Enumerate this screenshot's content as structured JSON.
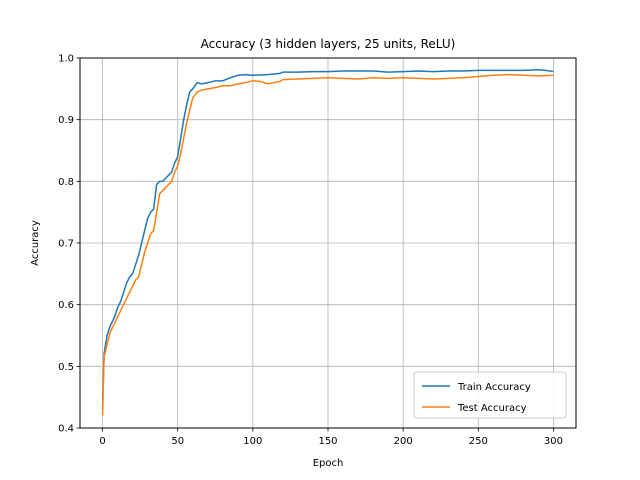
{
  "chart_data": {
    "type": "line",
    "title": "Accuracy (3 hidden layers, 25 units, ReLU)",
    "xlabel": "Epoch",
    "ylabel": "Accuracy",
    "xlim": [
      -15,
      315
    ],
    "ylim": [
      0.4,
      1.0
    ],
    "xticks": [
      0,
      50,
      100,
      150,
      200,
      250,
      300
    ],
    "yticks": [
      0.4,
      0.5,
      0.6,
      0.7,
      0.8,
      0.9,
      1.0
    ],
    "grid": true,
    "legend_position": "bottom-right",
    "series": [
      {
        "name": "Train Accuracy",
        "color": "#1f77b4",
        "points": [
          [
            0,
            0.43
          ],
          [
            1,
            0.52
          ],
          [
            3,
            0.55
          ],
          [
            5,
            0.565
          ],
          [
            8,
            0.58
          ],
          [
            10,
            0.595
          ],
          [
            12,
            0.605
          ],
          [
            14,
            0.62
          ],
          [
            16,
            0.635
          ],
          [
            18,
            0.645
          ],
          [
            20,
            0.65
          ],
          [
            22,
            0.665
          ],
          [
            24,
            0.68
          ],
          [
            26,
            0.7
          ],
          [
            28,
            0.72
          ],
          [
            30,
            0.74
          ],
          [
            32,
            0.75
          ],
          [
            34,
            0.755
          ],
          [
            36,
            0.795
          ],
          [
            38,
            0.8
          ],
          [
            40,
            0.8
          ],
          [
            42,
            0.805
          ],
          [
            44,
            0.81
          ],
          [
            46,
            0.815
          ],
          [
            48,
            0.83
          ],
          [
            50,
            0.84
          ],
          [
            52,
            0.87
          ],
          [
            54,
            0.9
          ],
          [
            56,
            0.925
          ],
          [
            58,
            0.945
          ],
          [
            60,
            0.95
          ],
          [
            63,
            0.96
          ],
          [
            66,
            0.958
          ],
          [
            70,
            0.96
          ],
          [
            75,
            0.963
          ],
          [
            80,
            0.963
          ],
          [
            85,
            0.968
          ],
          [
            90,
            0.972
          ],
          [
            95,
            0.973
          ],
          [
            100,
            0.972
          ],
          [
            110,
            0.973
          ],
          [
            118,
            0.975
          ],
          [
            120,
            0.977
          ],
          [
            130,
            0.977
          ],
          [
            140,
            0.978
          ],
          [
            150,
            0.978
          ],
          [
            160,
            0.979
          ],
          [
            170,
            0.979
          ],
          [
            180,
            0.979
          ],
          [
            190,
            0.977
          ],
          [
            200,
            0.978
          ],
          [
            210,
            0.979
          ],
          [
            220,
            0.978
          ],
          [
            230,
            0.979
          ],
          [
            240,
            0.979
          ],
          [
            250,
            0.98
          ],
          [
            260,
            0.98
          ],
          [
            270,
            0.98
          ],
          [
            280,
            0.98
          ],
          [
            290,
            0.981
          ],
          [
            295,
            0.98
          ],
          [
            300,
            0.978
          ]
        ]
      },
      {
        "name": "Test Accuracy",
        "color": "#ff7f0e",
        "points": [
          [
            0,
            0.42
          ],
          [
            1,
            0.515
          ],
          [
            3,
            0.535
          ],
          [
            5,
            0.555
          ],
          [
            8,
            0.57
          ],
          [
            10,
            0.58
          ],
          [
            14,
            0.6
          ],
          [
            18,
            0.62
          ],
          [
            20,
            0.63
          ],
          [
            22,
            0.64
          ],
          [
            24,
            0.645
          ],
          [
            26,
            0.665
          ],
          [
            28,
            0.685
          ],
          [
            30,
            0.7
          ],
          [
            32,
            0.715
          ],
          [
            34,
            0.72
          ],
          [
            36,
            0.75
          ],
          [
            38,
            0.78
          ],
          [
            40,
            0.785
          ],
          [
            42,
            0.79
          ],
          [
            44,
            0.795
          ],
          [
            46,
            0.8
          ],
          [
            48,
            0.815
          ],
          [
            50,
            0.825
          ],
          [
            52,
            0.845
          ],
          [
            54,
            0.87
          ],
          [
            56,
            0.895
          ],
          [
            58,
            0.915
          ],
          [
            60,
            0.935
          ],
          [
            63,
            0.945
          ],
          [
            66,
            0.948
          ],
          [
            70,
            0.95
          ],
          [
            75,
            0.952
          ],
          [
            80,
            0.955
          ],
          [
            85,
            0.955
          ],
          [
            90,
            0.958
          ],
          [
            95,
            0.96
          ],
          [
            100,
            0.963
          ],
          [
            105,
            0.962
          ],
          [
            110,
            0.958
          ],
          [
            118,
            0.962
          ],
          [
            120,
            0.965
          ],
          [
            130,
            0.966
          ],
          [
            140,
            0.967
          ],
          [
            150,
            0.968
          ],
          [
            160,
            0.967
          ],
          [
            170,
            0.966
          ],
          [
            180,
            0.968
          ],
          [
            190,
            0.967
          ],
          [
            200,
            0.968
          ],
          [
            210,
            0.967
          ],
          [
            220,
            0.966
          ],
          [
            230,
            0.967
          ],
          [
            240,
            0.968
          ],
          [
            250,
            0.97
          ],
          [
            260,
            0.972
          ],
          [
            270,
            0.973
          ],
          [
            280,
            0.972
          ],
          [
            290,
            0.971
          ],
          [
            300,
            0.972
          ]
        ]
      }
    ]
  }
}
